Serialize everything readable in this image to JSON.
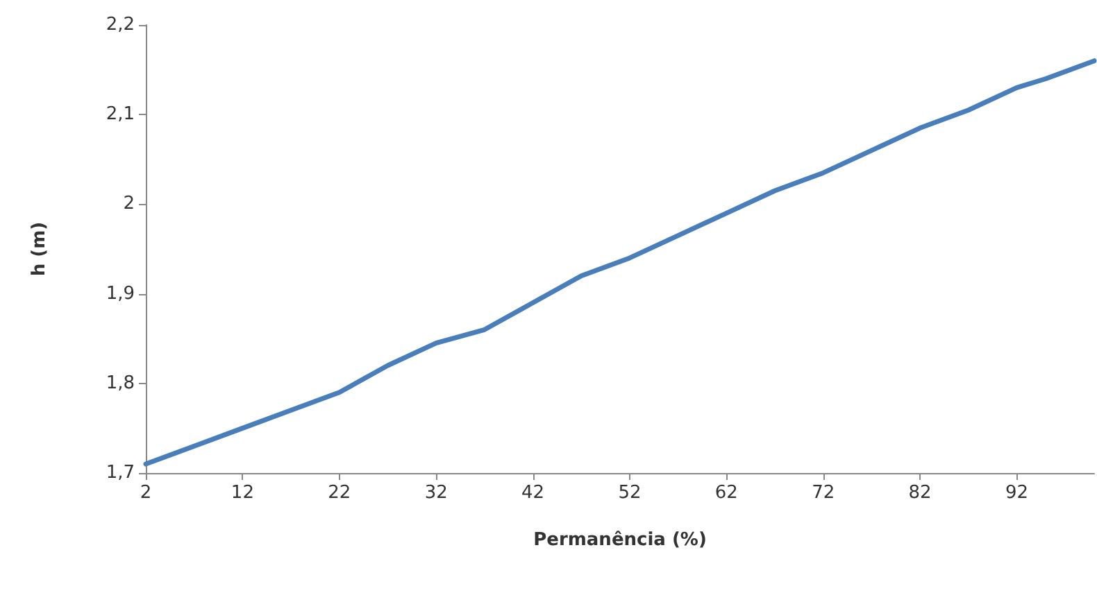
{
  "chart_data": {
    "type": "line",
    "xlabel": "Permanência (%)",
    "ylabel": "h (m)",
    "x": [
      2,
      7,
      12,
      17,
      22,
      27,
      32,
      37,
      42,
      47,
      52,
      57,
      62,
      67,
      72,
      77,
      82,
      87,
      92,
      95,
      100
    ],
    "series": [
      {
        "color": "#4a7ebb",
        "values": [
          1.71,
          1.73,
          1.75,
          1.77,
          1.79,
          1.82,
          1.845,
          1.86,
          1.89,
          1.92,
          1.94,
          1.965,
          1.99,
          2.015,
          2.035,
          2.06,
          2.085,
          2.105,
          2.13,
          2.14,
          2.16
        ]
      }
    ],
    "xlim": [
      2,
      100
    ],
    "xticks": [
      2,
      12,
      22,
      32,
      42,
      52,
      62,
      72,
      82,
      92
    ],
    "ylim": [
      1.7,
      2.2
    ],
    "yticks": [
      {
        "value": 1.7,
        "label": "1,7"
      },
      {
        "value": 1.8,
        "label": "1,8"
      },
      {
        "value": 1.9,
        "label": "1,9"
      },
      {
        "value": 2,
        "label": "2"
      },
      {
        "value": 2.1,
        "label": "2,1"
      },
      {
        "value": 2.2,
        "label": "2,2"
      }
    ],
    "grid": false,
    "marker": "none",
    "line_style": "solid"
  }
}
